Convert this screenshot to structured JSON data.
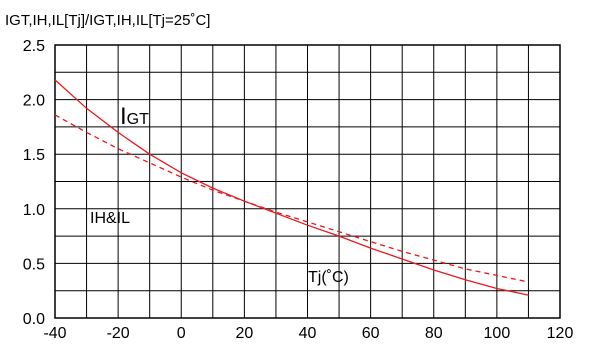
{
  "chart_data": {
    "type": "line",
    "ylabel": "IGT,IH,IL[Tj]/IGT,IH,IL[Tj=25˚C]",
    "xlim": [
      -40,
      120
    ],
    "ylim": [
      0.0,
      2.5
    ],
    "x_ticks": [
      "-40",
      "-20",
      "0",
      "20",
      "40",
      "60",
      "80",
      "100",
      "120"
    ],
    "y_ticks": [
      "0.0",
      "0.5",
      "1.0",
      "1.5",
      "2.0",
      "2.5"
    ],
    "grid": true,
    "x_minor_step": 10,
    "y_minor_step": 0.25,
    "series": [
      {
        "name": "IGT",
        "label_main": "I",
        "label_sub": "GT",
        "style": "solid",
        "color": "#e8191e",
        "x": [
          -40,
          -30,
          -20,
          -10,
          0,
          10,
          20,
          30,
          40,
          50,
          60,
          70,
          80,
          90,
          100,
          110
        ],
        "y": [
          2.18,
          1.92,
          1.7,
          1.5,
          1.33,
          1.19,
          1.07,
          0.96,
          0.85,
          0.75,
          0.64,
          0.54,
          0.44,
          0.35,
          0.27,
          0.21
        ]
      },
      {
        "name": "IH&IL",
        "style": "dashed",
        "color": "#e8191e",
        "x": [
          -40,
          -30,
          -20,
          -10,
          0,
          10,
          20,
          30,
          40,
          50,
          60,
          70,
          80,
          90,
          100,
          110
        ],
        "y": [
          1.86,
          1.7,
          1.55,
          1.42,
          1.29,
          1.17,
          1.07,
          0.97,
          0.88,
          0.79,
          0.7,
          0.61,
          0.53,
          0.45,
          0.39,
          0.33
        ]
      }
    ],
    "annotations": [
      {
        "text": "Tj(˚C)",
        "x": 62,
        "y": 0.3
      }
    ]
  }
}
